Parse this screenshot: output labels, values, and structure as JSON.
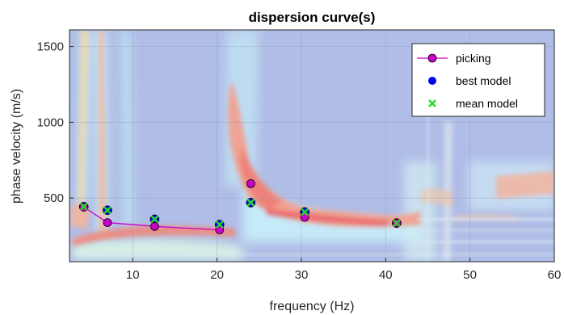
{
  "chart_data": {
    "type": "scatter",
    "title": "dispersion curve(s)",
    "xlabel": "frequency (Hz)",
    "ylabel": "phase velocity (m/s)",
    "xlim": [
      2.5,
      60
    ],
    "ylim": [
      80,
      1610
    ],
    "xticks": [
      10,
      20,
      30,
      40,
      50,
      60
    ],
    "yticks": [
      500,
      1000,
      1500
    ],
    "grid": true,
    "legend_position": "top-right",
    "background": "dispersion image heatmap",
    "series": [
      {
        "name": "picking",
        "style": "line-with-circle-markers",
        "color": "#cc00cc",
        "points": [
          {
            "x": 4.2,
            "y": 440
          },
          {
            "x": 7.0,
            "y": 338
          },
          {
            "x": 12.6,
            "y": 313
          },
          {
            "x": 20.3,
            "y": 290
          },
          {
            "x": 24.0,
            "y": 595
          },
          {
            "x": 30.4,
            "y": 373
          },
          {
            "x": 41.3,
            "y": 335
          }
        ]
      },
      {
        "name": "best model",
        "style": "filled-circles",
        "color": "#0000ee",
        "points": [
          {
            "x": 4.2,
            "y": 443
          },
          {
            "x": 7.0,
            "y": 420
          },
          {
            "x": 12.6,
            "y": 360
          },
          {
            "x": 20.3,
            "y": 325
          },
          {
            "x": 24.0,
            "y": 470
          },
          {
            "x": 30.4,
            "y": 408
          },
          {
            "x": 41.3,
            "y": 335
          }
        ]
      },
      {
        "name": "mean model",
        "style": "x-markers",
        "color": "#22dd22",
        "points": [
          {
            "x": 4.2,
            "y": 443
          },
          {
            "x": 7.0,
            "y": 420
          },
          {
            "x": 12.6,
            "y": 360
          },
          {
            "x": 20.3,
            "y": 325
          },
          {
            "x": 24.0,
            "y": 470
          },
          {
            "x": 30.4,
            "y": 408
          },
          {
            "x": 41.3,
            "y": 335
          }
        ]
      }
    ]
  }
}
